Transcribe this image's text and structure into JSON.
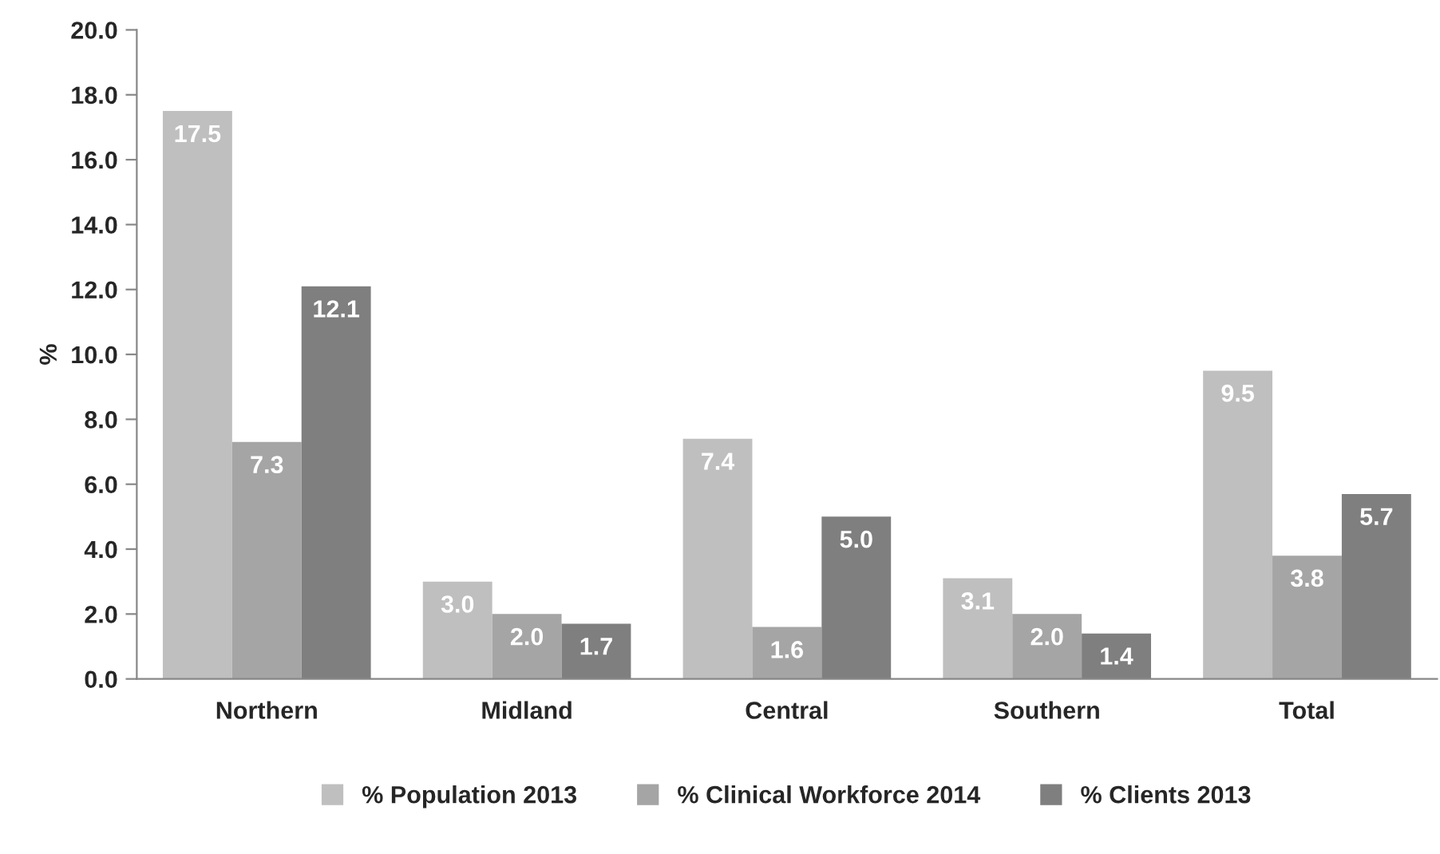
{
  "chart_data": {
    "type": "bar",
    "ylabel": "%",
    "categories": [
      "Northern",
      "Midland",
      "Central",
      "Southern",
      "Total"
    ],
    "series": [
      {
        "name": "% Population 2013",
        "color": "#bfbfbf",
        "values": [
          17.5,
          3.0,
          7.4,
          3.1,
          9.5
        ],
        "value_labels": [
          "17.5",
          "3.0",
          "7.4",
          "3.1",
          "9.5"
        ]
      },
      {
        "name": "% Clinical Workforce 2014",
        "color": "#a5a5a5",
        "values": [
          7.3,
          2.0,
          1.6,
          2.0,
          3.8
        ],
        "value_labels": [
          "7.3",
          "2.0",
          "1.6",
          "2.0",
          "3.8"
        ]
      },
      {
        "name": "% Clients 2013",
        "color": "#7f7f7f",
        "values": [
          12.1,
          1.7,
          5.0,
          1.4,
          5.7
        ],
        "value_labels": [
          "12.1",
          "1.7",
          "5.0",
          "1.4",
          "5.7"
        ]
      }
    ],
    "ylim": [
      0,
      20
    ],
    "yticks": [
      {
        "value": 0,
        "label": "0.0"
      },
      {
        "value": 2,
        "label": "2.0"
      },
      {
        "value": 4,
        "label": "4.0"
      },
      {
        "value": 6,
        "label": "6.0"
      },
      {
        "value": 8,
        "label": "8.0"
      },
      {
        "value": 10,
        "label": "10.0"
      },
      {
        "value": 12,
        "label": "12.0"
      },
      {
        "value": 14,
        "label": "14.0"
      },
      {
        "value": 16,
        "label": "16.0"
      },
      {
        "value": 18,
        "label": "18.0"
      },
      {
        "value": 20,
        "label": "20.0"
      }
    ],
    "grid": false,
    "legend": "bottom"
  }
}
